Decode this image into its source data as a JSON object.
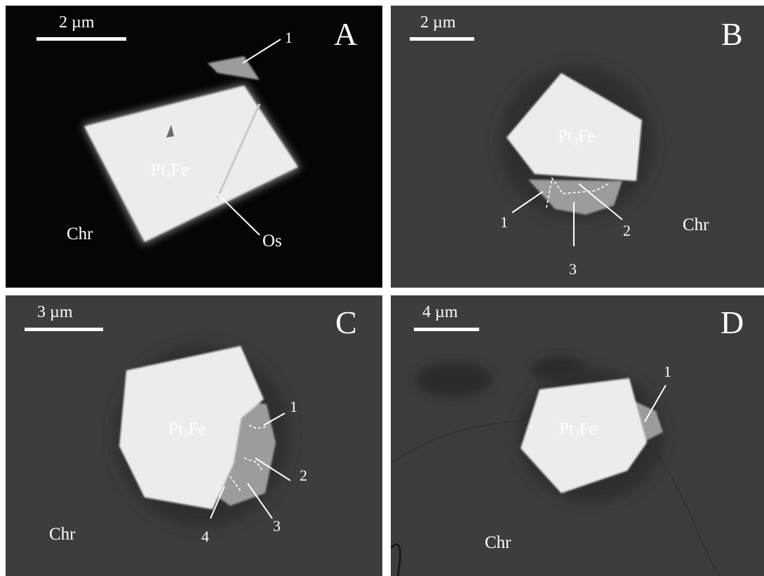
{
  "panels": {
    "a": {
      "letter": "A",
      "scale": "2 µm",
      "grain_pre": "Pt",
      "grain_sub": "3",
      "grain_post": "Fe",
      "matrix": "Chr",
      "labels": {
        "n1": "1",
        "os": "Os"
      }
    },
    "b": {
      "letter": "B",
      "scale": "2 µm",
      "grain_pre": "Pt",
      "grain_sub": "3",
      "grain_post": "Fe",
      "matrix": "Chr",
      "labels": {
        "n1": "1",
        "n2": "2",
        "n3": "3"
      }
    },
    "c": {
      "letter": "C",
      "scale": "3 µm",
      "grain_pre": "Pt",
      "grain_sub": "3",
      "grain_post": "Fe",
      "matrix": "Chr",
      "labels": {
        "n1": "1",
        "n2": "2",
        "n3": "3",
        "n4": "4"
      }
    },
    "d": {
      "letter": "D",
      "scale": "4 µm",
      "grain_pre": "Pt",
      "grain_sub": "3",
      "grain_post": "Fe",
      "matrix": "Chr",
      "labels": {
        "n1": "1"
      }
    }
  },
  "colors": {
    "panel_a_background": "#050505",
    "sem_background": "#3d3d3d",
    "grain": "#ececec",
    "inclusion": "#9c9c9c",
    "annotation": "#ffffff"
  }
}
